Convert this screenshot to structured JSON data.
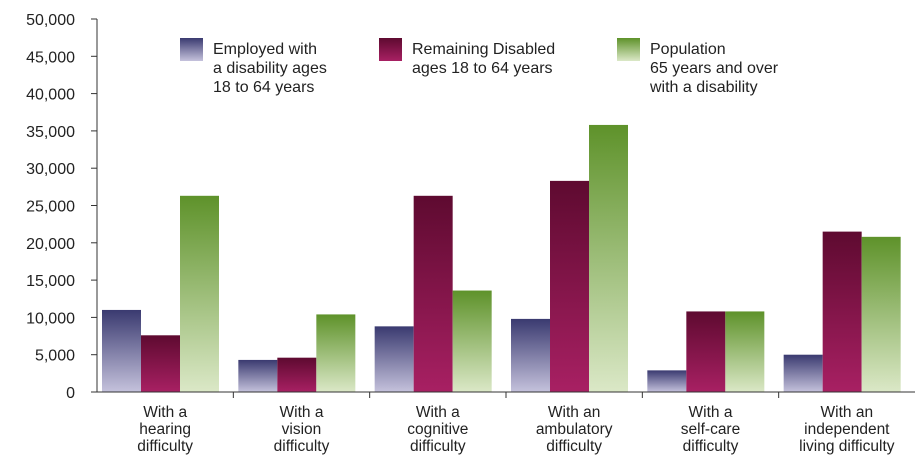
{
  "chart_data": {
    "type": "bar",
    "categories": [
      [
        "With a",
        "hearing",
        "difficulty"
      ],
      [
        "With a",
        "vision",
        "difficulty"
      ],
      [
        "With a",
        "cognitive",
        "difficulty"
      ],
      [
        "With an",
        "ambulatory",
        "difficulty"
      ],
      [
        "With a",
        "self-care",
        "difficulty"
      ],
      [
        "With an",
        "independent",
        "living difficulty"
      ]
    ],
    "series": [
      {
        "name": [
          "Employed with",
          "a disability ages",
          "18 to 64 years"
        ],
        "values": [
          11000,
          4300,
          8800,
          9800,
          2900,
          5000
        ],
        "color_top": "#3a3a70",
        "color_bottom": "#c5c2dc"
      },
      {
        "name": [
          "Remaining Disabled",
          "ages 18 to 64 years"
        ],
        "values": [
          7600,
          4600,
          26300,
          28300,
          10800,
          21500
        ],
        "color_top": "#5e0a30",
        "color_bottom": "#a82063"
      },
      {
        "name": [
          "Population",
          "65 years and over",
          "with a disability"
        ],
        "values": [
          26300,
          10400,
          13600,
          35800,
          10800,
          20800
        ],
        "color_top": "#5e922a",
        "color_bottom": "#dbe8c7"
      }
    ],
    "yticks": [
      "0",
      "5,000",
      "10,000",
      "15,000",
      "20,000",
      "25,000",
      "30,000",
      "35,000",
      "40,000",
      "45,000",
      "50,000"
    ],
    "ylim": [
      0,
      50000
    ],
    "grid": false,
    "legend_position": "top-center",
    "title": "",
    "xlabel": "",
    "ylabel": ""
  }
}
